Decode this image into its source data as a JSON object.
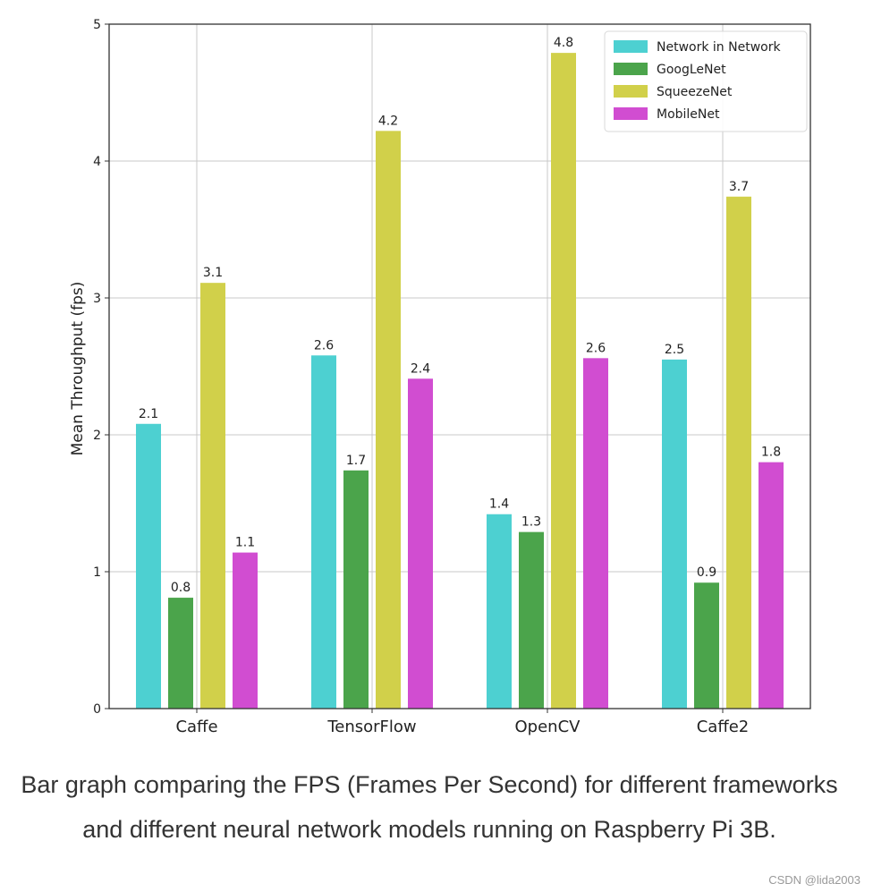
{
  "chart_data": {
    "type": "bar",
    "title": "",
    "xlabel": "",
    "ylabel": "Mean Throughput (fps)",
    "ylim": [
      0,
      5
    ],
    "yticks": [
      0,
      1,
      2,
      3,
      4,
      5
    ],
    "grid": true,
    "legend_position": "top-right",
    "categories": [
      "Caffe",
      "TensorFlow",
      "OpenCV",
      "Caffe2"
    ],
    "series": [
      {
        "name": "Network in Network",
        "color": "#4dd0d1",
        "values": [
          2.08,
          2.58,
          1.42,
          2.55
        ],
        "labels": [
          "2.1",
          "2.6",
          "1.4",
          "2.5"
        ]
      },
      {
        "name": "GoogLeNet",
        "color": "#4ba44b",
        "values": [
          0.81,
          1.74,
          1.29,
          0.92
        ],
        "labels": [
          "0.8",
          "1.7",
          "1.3",
          "0.9"
        ]
      },
      {
        "name": "SqueezeNet",
        "color": "#d1d04a",
        "values": [
          3.11,
          4.22,
          4.79,
          3.74
        ],
        "labels": [
          "3.1",
          "4.2",
          "4.8",
          "3.7"
        ]
      },
      {
        "name": "MobileNet",
        "color": "#d14dd1",
        "values": [
          1.14,
          2.41,
          2.56,
          1.8
        ],
        "labels": [
          "1.1",
          "2.4",
          "2.6",
          "1.8"
        ]
      }
    ]
  },
  "caption": "Bar graph comparing the FPS (Frames Per Second) for different frameworks and different neural network models running on Raspberry Pi 3B.",
  "watermark": "CSDN @lida2003"
}
